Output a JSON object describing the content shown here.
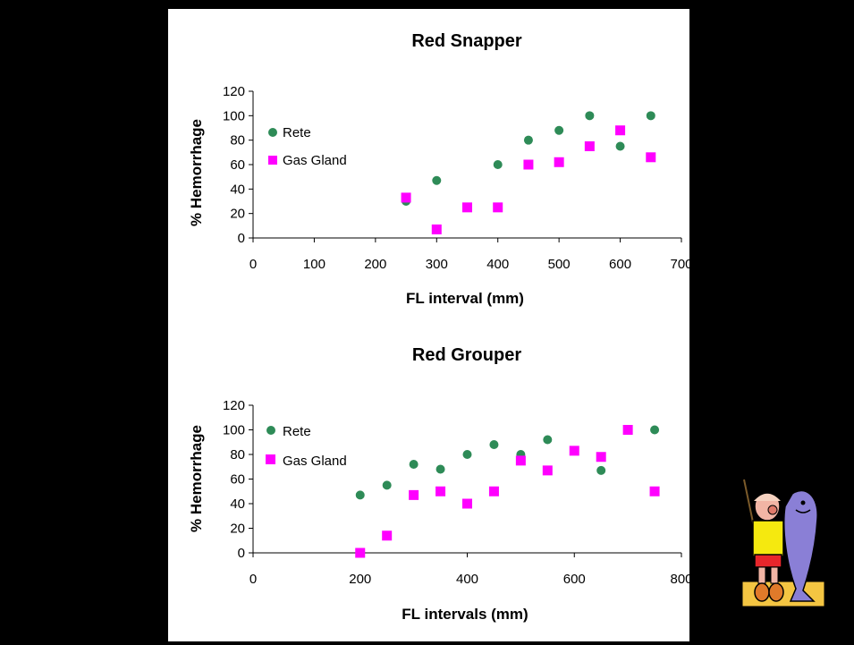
{
  "chart_data": [
    {
      "type": "scatter",
      "title": "Red Snapper",
      "xlabel": "FL interval (mm)",
      "ylabel": "% Hemorrhage",
      "xlim": [
        0,
        700
      ],
      "ylim": [
        0,
        120
      ],
      "xticks": [
        "0",
        "100",
        "200",
        "300",
        "400",
        "500",
        "600",
        "700"
      ],
      "yticks": [
        "0",
        "20",
        "40",
        "60",
        "80",
        "100",
        "120"
      ],
      "legend_position": "top-left",
      "grid": false,
      "series": [
        {
          "name": "Rete",
          "marker": "circle",
          "color": "#2e8b57",
          "x": [
            250,
            300,
            400,
            450,
            500,
            550,
            600,
            650
          ],
          "y": [
            30,
            47,
            60,
            80,
            88,
            100,
            75,
            100
          ]
        },
        {
          "name": "Gas Gland",
          "marker": "square",
          "color": "#ff00ff",
          "x": [
            250,
            300,
            350,
            400,
            450,
            500,
            550,
            600,
            650
          ],
          "y": [
            33,
            7,
            25,
            25,
            60,
            62,
            75,
            88,
            66
          ]
        }
      ]
    },
    {
      "type": "scatter",
      "title": "Red Grouper",
      "xlabel": "FL intervals (mm)",
      "ylabel": "% Hemorrhage",
      "xlim": [
        0,
        800
      ],
      "ylim": [
        0,
        120
      ],
      "xticks": [
        "0",
        "200",
        "400",
        "600",
        "800"
      ],
      "yticks": [
        "0",
        "20",
        "40",
        "60",
        "80",
        "100",
        "120"
      ],
      "legend_position": "top-left",
      "grid": false,
      "series": [
        {
          "name": "Rete",
          "marker": "circle",
          "color": "#2e8b57",
          "x": [
            200,
            250,
            300,
            350,
            400,
            450,
            500,
            550,
            650,
            750
          ],
          "y": [
            47,
            55,
            72,
            68,
            80,
            88,
            80,
            92,
            67,
            100
          ]
        },
        {
          "name": "Gas Gland",
          "marker": "square",
          "color": "#ff00ff",
          "x": [
            200,
            250,
            300,
            350,
            400,
            450,
            500,
            550,
            600,
            650,
            700,
            750
          ],
          "y": [
            0,
            14,
            47,
            50,
            40,
            50,
            75,
            67,
            83,
            78,
            100,
            50
          ]
        }
      ]
    }
  ],
  "clipart": {
    "icon": "fisherman-with-fish-icon"
  }
}
